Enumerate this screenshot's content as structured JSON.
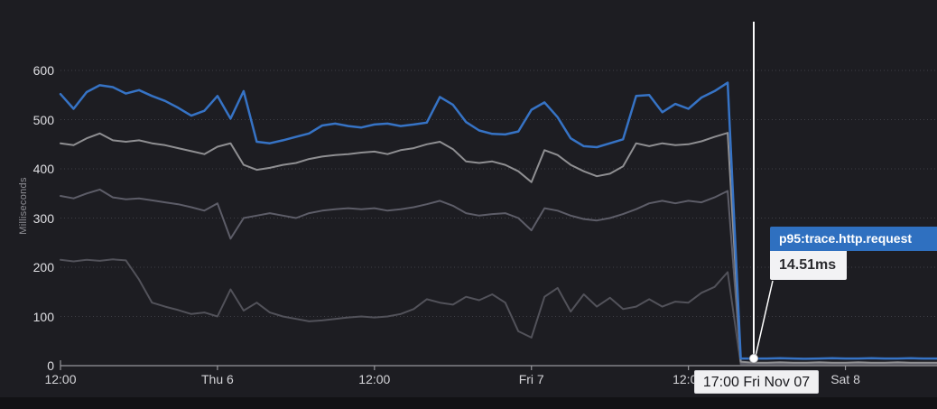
{
  "axis": {
    "ylabel": "Milliseconds",
    "y_ticks": [
      "0",
      "100",
      "200",
      "300",
      "400",
      "500",
      "600"
    ],
    "x_ticks": [
      "12:00",
      "Thu 6",
      "12:00",
      "Fri 7",
      "12:00",
      "Sat 8"
    ]
  },
  "tooltip": {
    "metric": "p95:trace.http.request",
    "value": "14.51ms",
    "timestamp": "17:00 Fri Nov 07"
  },
  "colors": {
    "background": "#1d1d22",
    "bottom_strip": "#121215",
    "gridline": "#3f3f46",
    "axis_line": "#96969b",
    "cursor": "#ffffff",
    "tooltip_header_bg": "#2f70c0",
    "series_blue": "#3673c5",
    "series_gray_light": "#8f8f92",
    "series_gray_mid": "#5d5d68",
    "series_gray_dark": "#52525a"
  },
  "chart_data": {
    "type": "line",
    "title": "",
    "xlabel": "",
    "ylabel": "Milliseconds",
    "ylim": [
      0,
      600
    ],
    "grid": "horizontal-dotted",
    "legend_position": "none",
    "x_unit": "hours since Wed 12:00",
    "x_start_hour": 0,
    "x_step_hours": 1,
    "x_end_hour": 67,
    "x_tick_hours": [
      0,
      12,
      24,
      36,
      48,
      60
    ],
    "x_tick_labels": [
      "12:00",
      "Thu 6",
      "12:00",
      "Fri 7",
      "12:00",
      "Sat 8"
    ],
    "y_tick_values": [
      0,
      100,
      200,
      300,
      400,
      500,
      600
    ],
    "cursor": {
      "x_hour": 53,
      "time_label": "17:00 Fri Nov 07",
      "hovered_series": "p95:trace.http.request",
      "hovered_value_ms": 14.51
    },
    "series": [
      {
        "name": "unlabeled-gray-dark",
        "color": "#52525a",
        "width": 2,
        "values": [
          215,
          212,
          215,
          213,
          216,
          214,
          175,
          128,
          120,
          113,
          105,
          108,
          100,
          155,
          112,
          128,
          108,
          100,
          95,
          90,
          92,
          95,
          98,
          100,
          98,
          100,
          105,
          115,
          135,
          128,
          124,
          140,
          133,
          145,
          128,
          70,
          57,
          140,
          158,
          110,
          145,
          120,
          138,
          115,
          120,
          135,
          120,
          130,
          128,
          148,
          160,
          190,
          3,
          3,
          3,
          3,
          3,
          3,
          3,
          3,
          3,
          3,
          3,
          3,
          3,
          3,
          3,
          3
        ]
      },
      {
        "name": "unlabeled-gray-mid",
        "color": "#5d5d68",
        "width": 2,
        "values": [
          345,
          340,
          350,
          358,
          342,
          338,
          340,
          336,
          332,
          328,
          322,
          315,
          330,
          258,
          300,
          305,
          310,
          305,
          300,
          310,
          315,
          318,
          320,
          318,
          320,
          315,
          318,
          322,
          328,
          335,
          325,
          310,
          305,
          308,
          310,
          300,
          275,
          320,
          315,
          305,
          298,
          295,
          300,
          308,
          318,
          330,
          335,
          330,
          335,
          332,
          342,
          355,
          5,
          4,
          4,
          4,
          4,
          4,
          4,
          4,
          4,
          4,
          4,
          4,
          4,
          4,
          4,
          4
        ]
      },
      {
        "name": "unlabeled-gray-light",
        "color": "#8f8f92",
        "width": 2,
        "values": [
          452,
          448,
          462,
          472,
          458,
          455,
          458,
          452,
          448,
          442,
          436,
          430,
          445,
          452,
          408,
          398,
          402,
          408,
          412,
          420,
          425,
          428,
          430,
          433,
          435,
          430,
          438,
          442,
          450,
          455,
          440,
          415,
          412,
          415,
          408,
          395,
          373,
          438,
          428,
          408,
          395,
          385,
          390,
          405,
          452,
          446,
          452,
          448,
          450,
          456,
          465,
          473,
          8,
          6,
          6,
          7,
          6,
          6,
          7,
          6,
          6,
          7,
          6,
          6,
          7,
          6,
          6,
          6
        ]
      },
      {
        "name": "p95:trace.http.request",
        "color": "#3673c5",
        "width": 2.5,
        "values": [
          552,
          522,
          556,
          570,
          566,
          553,
          560,
          548,
          538,
          524,
          508,
          518,
          548,
          502,
          558,
          455,
          452,
          458,
          465,
          472,
          488,
          492,
          487,
          484,
          490,
          492,
          487,
          490,
          494,
          546,
          530,
          495,
          478,
          471,
          470,
          476,
          520,
          535,
          505,
          462,
          446,
          444,
          452,
          460,
          548,
          550,
          515,
          532,
          522,
          545,
          558,
          575,
          14.5,
          14.5,
          14.5,
          15,
          14.5,
          14,
          14.5,
          15,
          14.5,
          14.5,
          15,
          14.5,
          14.5,
          15,
          14.5,
          14.5
        ]
      }
    ]
  }
}
